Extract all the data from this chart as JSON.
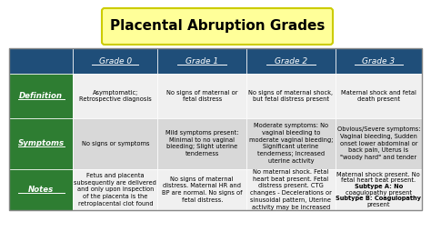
{
  "title": "Placental Abruption Grades",
  "title_bg": "#FFFF99",
  "title_border": "#CCCC00",
  "header_bg": "#1F4E79",
  "header_text_color": "#FFFFFF",
  "row_label_bg": "#2E7D32",
  "row_label_text_color": "#FFFFFF",
  "cell_bg_light": "#F0F0F0",
  "cell_bg_dark": "#D8D8D8",
  "fig_bg": "#FFFFFF",
  "headers": [
    "Grade 0",
    "Grade 1",
    "Grade 2",
    "Grade 3"
  ],
  "row_labels": [
    "Definition",
    "Symptoms",
    "Notes"
  ],
  "cells": [
    [
      "Asymptomatic;\nRetrospective diagnosis",
      "No signs of maternal or\nfetal distress",
      "No signs of maternal shock,\nbut fetal distress present",
      "Maternal shock and fetal\ndeath present"
    ],
    [
      "No signs or symptoms",
      "Mild symptoms present:\nMinimal to no vaginal\nbleeding; Slight uterine\ntenderness",
      "Moderate symptoms: No\nvaginal bleeding to\nmoderate vaginal bleeding;\nSignificant uterine\ntenderness; Increased\nuterine activity",
      "Obvious/Severe symptoms:\nVaginal bleeding, Sudden\nonset lower abdominal or\nback pain, Uterus is\n\"woody hard\" and tender"
    ],
    [
      "Fetus and placenta\nsubsequently are delivered\nand only upon inspection\nof the placenta is the\nretroplacental clot found",
      "No signs of maternal\ndistress. Maternal HR and\nBP are normal. No signs of\nfetal distress.",
      "No maternal shock. Fetal\nheart beat present. Fetal\ndistress present. CTG\nchanges - Decelerations or\nsinusoidal pattern, Uterine\nactivity may be increased",
      "Maternal shock present. No\nfetal heart beat present.\nSubtype A: No\ncoagulopathy present\nSubtype B: Coagulopathy\npresent"
    ]
  ],
  "bold_phrases": [
    "Subtype A:",
    "Subtype B:"
  ]
}
